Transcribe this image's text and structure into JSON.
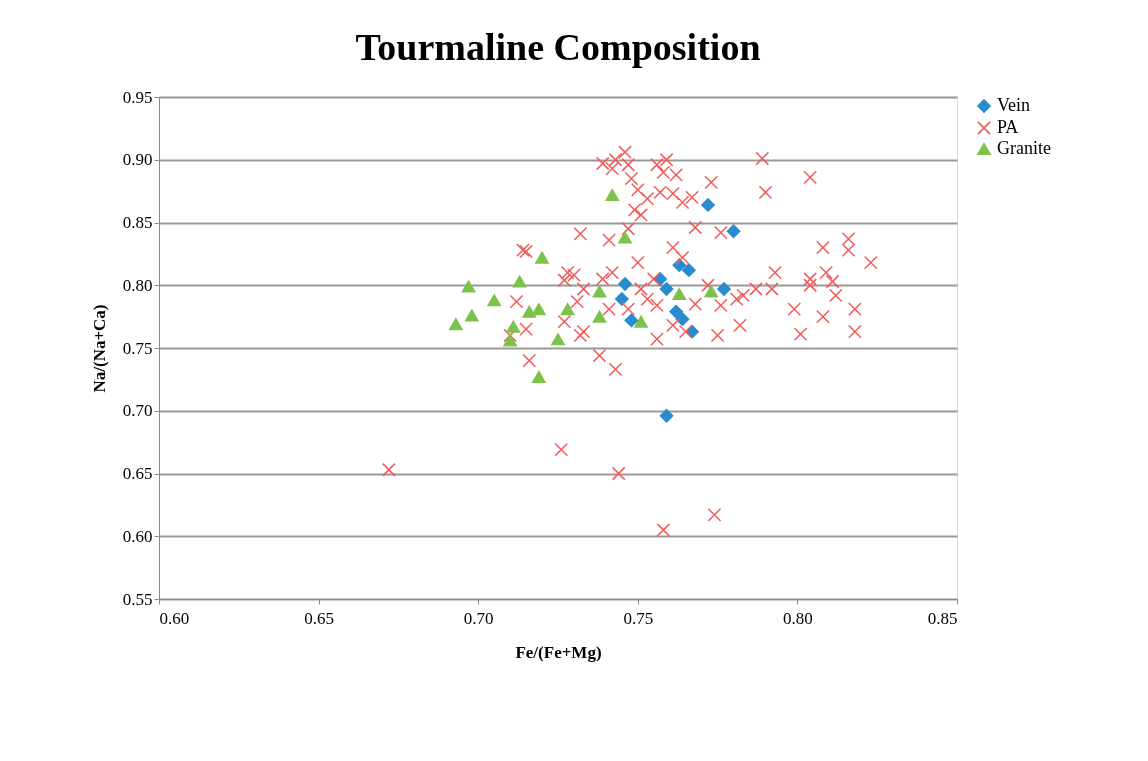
{
  "chart_data": {
    "type": "scatter",
    "title": "Tourmaline Composition",
    "xlabel": "Fe/(Fe+Mg)",
    "ylabel": "Na/(Na+Ca)",
    "xlim": [
      0.6,
      0.85
    ],
    "xticks": [
      {
        "value": 0.6,
        "label": "0.60"
      },
      0.65,
      {
        "value": 0.7,
        "label": "0.70"
      },
      0.75,
      {
        "value": 0.8,
        "label": "0.80"
      },
      0.85
    ],
    "ylim": [
      0.55,
      0.95
    ],
    "yticks": [
      0.55,
      {
        "value": 0.6,
        "label": "0.60"
      },
      0.65,
      {
        "value": 0.7,
        "label": "0.70"
      },
      0.75,
      {
        "value": 0.8,
        "label": "0.80"
      },
      0.85,
      {
        "value": 0.9,
        "label": "0.90"
      },
      0.95
    ],
    "grid": "y",
    "legend": "right",
    "series": [
      {
        "name": "Vein",
        "color": "#2a8ccf",
        "marker": "diamond",
        "x": [
          0.772,
          0.763,
          0.766,
          0.757,
          0.746,
          0.745,
          0.759,
          0.748,
          0.762,
          0.764,
          0.767,
          0.777,
          0.78,
          0.759
        ],
        "values": [
          0.864,
          0.816,
          0.812,
          0.805,
          0.801,
          0.789,
          0.797,
          0.772,
          0.779,
          0.773,
          0.763,
          0.797,
          0.843,
          0.696
        ]
      },
      {
        "name": "PA",
        "color": "#f25a5a",
        "marker": "cross",
        "x": [
          0.739,
          0.743,
          0.746,
          0.747,
          0.742,
          0.756,
          0.759,
          0.758,
          0.762,
          0.773,
          0.748,
          0.75,
          0.753,
          0.757,
          0.761,
          0.764,
          0.767,
          0.749,
          0.751,
          0.747,
          0.732,
          0.741,
          0.768,
          0.776,
          0.714,
          0.715,
          0.761,
          0.764,
          0.728,
          0.73,
          0.727,
          0.75,
          0.742,
          0.739,
          0.755,
          0.751,
          0.753,
          0.756,
          0.747,
          0.741,
          0.733,
          0.731,
          0.712,
          0.727,
          0.733,
          0.715,
          0.71,
          0.765,
          0.768,
          0.772,
          0.776,
          0.756,
          0.775,
          0.761,
          0.716,
          0.738,
          0.743,
          0.732,
          0.726,
          0.744,
          0.758,
          0.774,
          0.672,
          0.789,
          0.79,
          0.804,
          0.808,
          0.816,
          0.816,
          0.823,
          0.793,
          0.804,
          0.809,
          0.811,
          0.787,
          0.783,
          0.781,
          0.792,
          0.799,
          0.804,
          0.812,
          0.818,
          0.808,
          0.801,
          0.818,
          0.782
        ],
        "values": [
          0.897,
          0.9,
          0.906,
          0.896,
          0.893,
          0.896,
          0.9,
          0.89,
          0.888,
          0.882,
          0.885,
          0.876,
          0.869,
          0.874,
          0.873,
          0.866,
          0.87,
          0.86,
          0.856,
          0.845,
          0.841,
          0.836,
          0.846,
          0.842,
          0.828,
          0.827,
          0.83,
          0.822,
          0.81,
          0.808,
          0.804,
          0.818,
          0.81,
          0.805,
          0.805,
          0.797,
          0.789,
          0.784,
          0.781,
          0.781,
          0.797,
          0.787,
          0.787,
          0.771,
          0.763,
          0.765,
          0.76,
          0.763,
          0.785,
          0.8,
          0.784,
          0.757,
          0.76,
          0.768,
          0.74,
          0.744,
          0.733,
          0.76,
          0.669,
          0.65,
          0.605,
          0.617,
          0.653,
          0.901,
          0.874,
          0.886,
          0.83,
          0.837,
          0.828,
          0.818,
          0.81,
          0.805,
          0.81,
          0.803,
          0.797,
          0.792,
          0.789,
          0.797,
          0.781,
          0.8,
          0.792,
          0.781,
          0.775,
          0.761,
          0.763,
          0.768
        ]
      },
      {
        "name": "Granite",
        "color": "#7dc24b",
        "marker": "triangle",
        "x": [
          0.697,
          0.705,
          0.713,
          0.693,
          0.698,
          0.716,
          0.719,
          0.711,
          0.71,
          0.719,
          0.725,
          0.728,
          0.738,
          0.738,
          0.72,
          0.742,
          0.746,
          0.751,
          0.763,
          0.773
        ],
        "values": [
          0.799,
          0.788,
          0.803,
          0.769,
          0.776,
          0.779,
          0.781,
          0.767,
          0.756,
          0.727,
          0.757,
          0.781,
          0.775,
          0.795,
          0.822,
          0.872,
          0.838,
          0.771,
          0.793,
          0.795
        ]
      }
    ]
  }
}
